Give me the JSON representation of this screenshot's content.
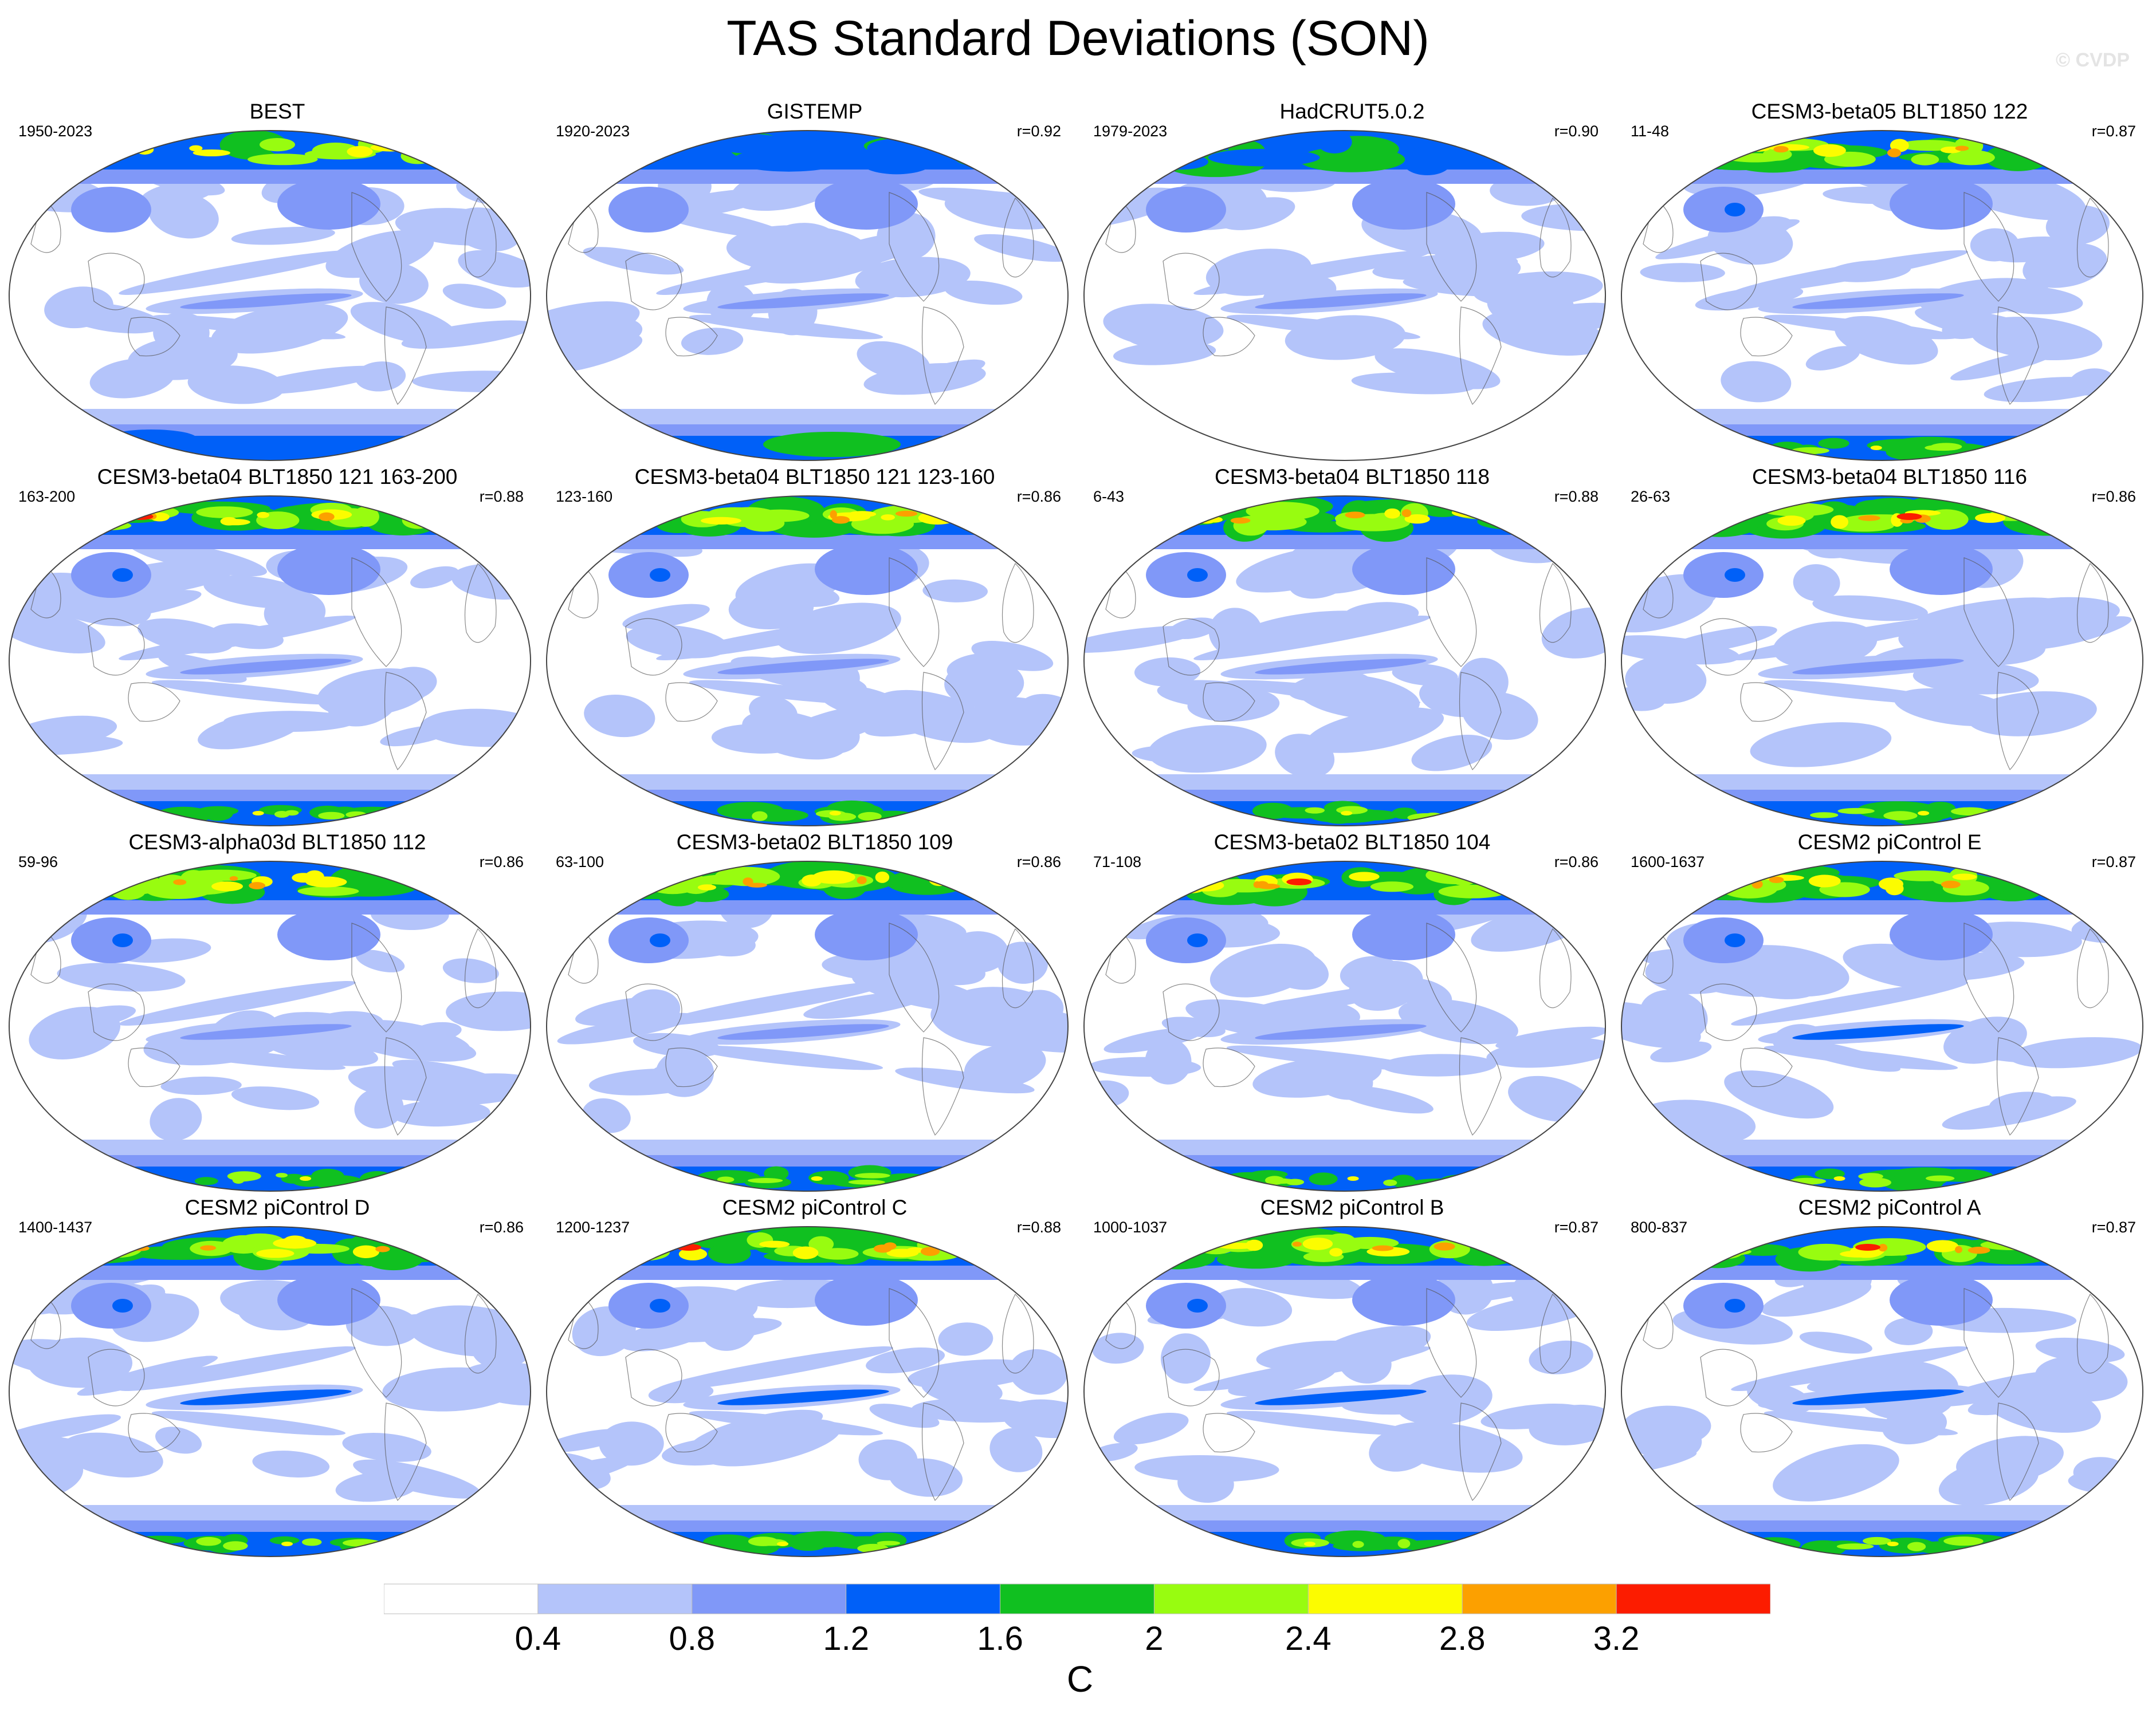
{
  "figure": {
    "title": "TAS Standard Deviations (SON)",
    "watermark": "© CVDP"
  },
  "panels": [
    {
      "title": "BEST",
      "period": "1950-2023",
      "correlation": "",
      "variant": 0,
      "antarctic": "low"
    },
    {
      "title": "GISTEMP",
      "period": "1920-2023",
      "correlation": "r=0.92",
      "variant": 1,
      "antarctic": "obs"
    },
    {
      "title": "HadCRUT5.0.2",
      "period": "1979-2023",
      "correlation": "r=0.90",
      "variant": 2,
      "antarctic": "none"
    },
    {
      "title": "CESM3-beta05 BLT1850 122",
      "period": "11-48",
      "correlation": "r=0.87",
      "variant": 3,
      "antarctic": "model"
    },
    {
      "title": "CESM3-beta04 BLT1850 121 163-200",
      "period": "163-200",
      "correlation": "r=0.88",
      "variant": 4,
      "antarctic": "model"
    },
    {
      "title": "CESM3-beta04 BLT1850 121 123-160",
      "period": "123-160",
      "correlation": "r=0.86",
      "variant": 5,
      "antarctic": "model"
    },
    {
      "title": "CESM3-beta04 BLT1850 118",
      "period": "6-43",
      "correlation": "r=0.88",
      "variant": 6,
      "antarctic": "model"
    },
    {
      "title": "CESM3-beta04 BLT1850 116",
      "period": "26-63",
      "correlation": "r=0.86",
      "variant": 7,
      "antarctic": "model"
    },
    {
      "title": "CESM3-alpha03d BLT1850 112",
      "period": "59-96",
      "correlation": "r=0.86",
      "variant": 8,
      "antarctic": "model"
    },
    {
      "title": "CESM3-beta02 BLT1850 109",
      "period": "63-100",
      "correlation": "r=0.86",
      "variant": 9,
      "antarctic": "model"
    },
    {
      "title": "CESM3-beta02 BLT1850 104",
      "period": "71-108",
      "correlation": "r=0.86",
      "variant": 10,
      "antarctic": "model"
    },
    {
      "title": "CESM2 piControl E",
      "period": "1600-1637",
      "correlation": "r=0.87",
      "variant": 11,
      "antarctic": "model"
    },
    {
      "title": "CESM2 piControl D",
      "period": "1400-1437",
      "correlation": "r=0.86",
      "variant": 12,
      "antarctic": "model"
    },
    {
      "title": "CESM2 piControl C",
      "period": "1200-1237",
      "correlation": "r=0.88",
      "variant": 13,
      "antarctic": "model"
    },
    {
      "title": "CESM2 piControl B",
      "period": "1000-1037",
      "correlation": "r=0.87",
      "variant": 14,
      "antarctic": "model"
    },
    {
      "title": "CESM2 piControl A",
      "period": "800-837",
      "correlation": "r=0.87",
      "variant": 15,
      "antarctic": "model"
    }
  ],
  "colorbar": {
    "units": "C",
    "tick_labels": [
      "0.4",
      "0.8",
      "1.2",
      "1.6",
      "2",
      "2.4",
      "2.8",
      "3.2"
    ],
    "colors": [
      "#ffffff",
      "#b4c4fa",
      "#8098f8",
      "#0060f8",
      "#10c020",
      "#98fc10",
      "#fcfc00",
      "#fca000",
      "#fc1c00"
    ]
  }
}
